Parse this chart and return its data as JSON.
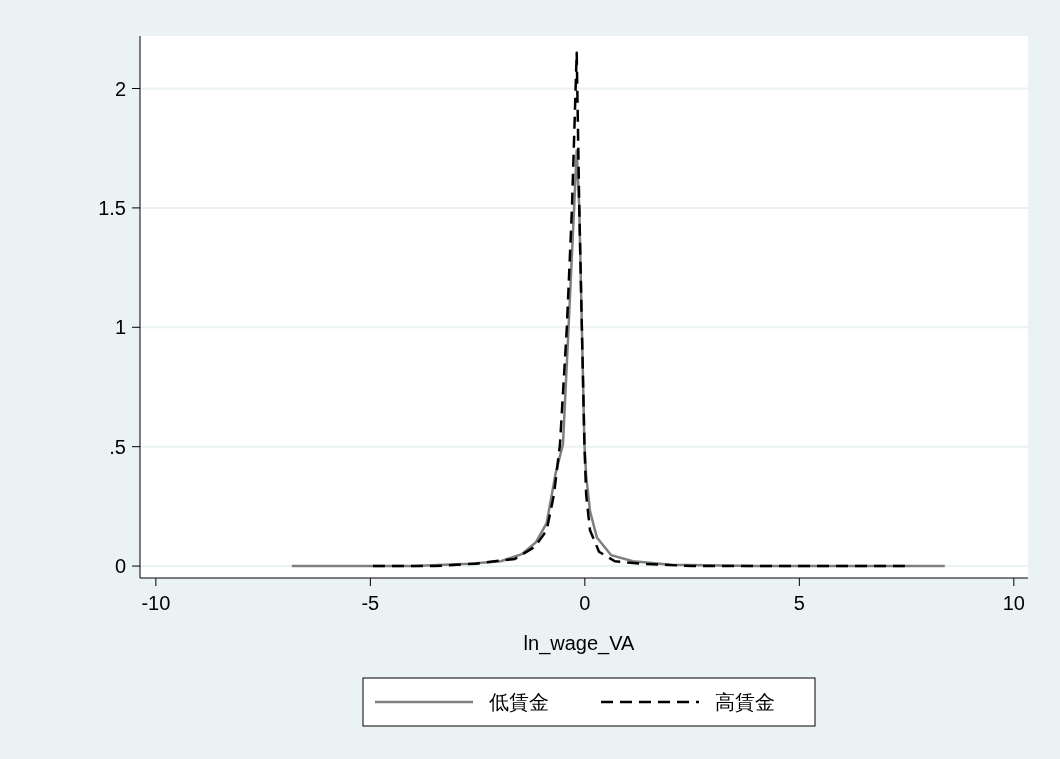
{
  "chart_data": {
    "type": "line",
    "xlabel": "ln_wage_VA",
    "xlim": [
      -10.37,
      10.33
    ],
    "ylim": [
      -0.05,
      2.22
    ],
    "xticks": [
      -10,
      -5,
      0,
      5,
      10
    ],
    "yticks": [
      0,
      {
        "value": 0.5,
        "label": ".5"
      },
      1,
      1.5,
      2
    ],
    "grid": "y",
    "legend": "bottom",
    "series": [
      {
        "name": "低賃金",
        "color": "#7f7f7f",
        "line_style": "solid",
        "x": [
          -6.83,
          -4,
          -2.7,
          -1.96,
          -1.47,
          -1.14,
          -0.89,
          -0.68,
          -0.51,
          -0.38,
          -0.25,
          -0.19,
          -0.13,
          -0.07,
          -0.01,
          0.03,
          0.12,
          0.28,
          0.61,
          1.12,
          2,
          4,
          6,
          8.39
        ],
        "values": [
          0,
          0,
          0.01,
          0.02,
          0.05,
          0.1,
          0.18,
          0.39,
          0.51,
          1.0,
          1.5,
          1.74,
          1.5,
          1.0,
          0.51,
          0.38,
          0.23,
          0.12,
          0.046,
          0.02,
          0.005,
          0,
          0,
          0
        ]
      },
      {
        "name": "高賃金",
        "color": "#000000",
        "line_style": "dashed",
        "x": [
          -4.94,
          -3.5,
          -2.55,
          -1.63,
          -1.17,
          -0.89,
          -0.72,
          -0.58,
          -0.42,
          -0.3,
          -0.19,
          -0.13,
          -0.07,
          -0.01,
          0.03,
          0.12,
          0.33,
          0.7,
          1.28,
          2.5,
          5,
          7.46
        ],
        "values": [
          0,
          0,
          0.01,
          0.03,
          0.08,
          0.15,
          0.3,
          0.51,
          1.0,
          1.5,
          2.15,
          1.5,
          1.0,
          0.51,
          0.3,
          0.15,
          0.06,
          0.02,
          0.01,
          0,
          0,
          0
        ]
      }
    ]
  }
}
